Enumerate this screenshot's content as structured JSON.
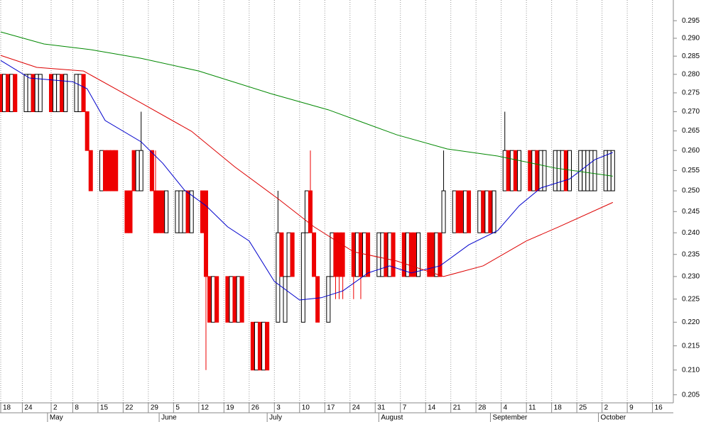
{
  "chart_data": {
    "type": "candlestick",
    "log_scale": true,
    "grid": true,
    "up_color": "#ffffff",
    "down_color": "#ee0000",
    "ylim": [
      0.2034,
      0.301
    ],
    "yticks": [
      0.205,
      {
        "value": 0.21,
        "label": "0.210"
      },
      0.215,
      {
        "value": 0.22,
        "label": "0.220"
      },
      0.225,
      {
        "value": 0.23,
        "label": "0.230"
      },
      0.235,
      {
        "value": 0.24,
        "label": "0.240"
      },
      0.245,
      {
        "value": 0.25,
        "label": "0.250"
      },
      0.255,
      {
        "value": 0.26,
        "label": "0.260"
      },
      0.265,
      {
        "value": 0.27,
        "label": "0.270"
      },
      0.275,
      {
        "value": 0.28,
        "label": "0.280"
      },
      0.285,
      {
        "value": 0.29,
        "label": "0.290"
      },
      0.295
    ],
    "xlim": [
      -0.2,
      186.8
    ],
    "xticks": [
      {
        "value": 0,
        "label": "18"
      },
      {
        "value": 6,
        "label": "24"
      },
      {
        "value": 14,
        "label": "2"
      },
      {
        "value": 20,
        "label": "8"
      },
      {
        "value": 27,
        "label": "15"
      },
      {
        "value": 34,
        "label": "22"
      },
      {
        "value": 41,
        "label": "29"
      },
      {
        "value": 48,
        "label": "5"
      },
      {
        "value": 55,
        "label": "12"
      },
      {
        "value": 62,
        "label": "19"
      },
      {
        "value": 69,
        "label": "26"
      },
      {
        "value": 76,
        "label": "3"
      },
      {
        "value": 83,
        "label": "10"
      },
      {
        "value": 90,
        "label": "17"
      },
      {
        "value": 97,
        "label": "24"
      },
      {
        "value": 104,
        "label": "31"
      },
      {
        "value": 111,
        "label": "7"
      },
      {
        "value": 118,
        "label": "14"
      },
      {
        "value": 125,
        "label": "21"
      },
      {
        "value": 132,
        "label": "28"
      },
      {
        "value": 139,
        "label": "4"
      },
      {
        "value": 146,
        "label": "11"
      },
      {
        "value": 153,
        "label": "18"
      },
      {
        "value": 160,
        "label": "25"
      },
      {
        "value": 167,
        "label": "2"
      },
      {
        "value": 174,
        "label": "9"
      },
      {
        "value": 181,
        "label": "16"
      }
    ],
    "month_labels": [
      {
        "value": 13,
        "label": "May"
      },
      {
        "value": 44,
        "label": "June"
      },
      {
        "value": 74,
        "label": "July"
      },
      {
        "value": 105,
        "label": "August"
      },
      {
        "value": 136,
        "label": "September"
      },
      {
        "value": 166,
        "label": "October"
      }
    ],
    "x": [
      0,
      1,
      2,
      3,
      4,
      7,
      8,
      9,
      10,
      11,
      14,
      15,
      16,
      17,
      18,
      21,
      22,
      23,
      24,
      25,
      28,
      29,
      30,
      31,
      32,
      35,
      36,
      37,
      38,
      39,
      42,
      43,
      44,
      45,
      46,
      49,
      50,
      51,
      52,
      53,
      56,
      57,
      58,
      59,
      60,
      63,
      64,
      65,
      66,
      67,
      70,
      71,
      72,
      73,
      74,
      77,
      78,
      79,
      80,
      81,
      84,
      85,
      86,
      87,
      88,
      91,
      92,
      93,
      94,
      95,
      98,
      99,
      100,
      101,
      102,
      105,
      106,
      107,
      108,
      109,
      112,
      113,
      114,
      115,
      116,
      119,
      120,
      121,
      122,
      123,
      126,
      127,
      128,
      129,
      130,
      133,
      134,
      135,
      136,
      137,
      140,
      141,
      142,
      143,
      144,
      147,
      148,
      149,
      150,
      151,
      154,
      155,
      156,
      157,
      158,
      161,
      162,
      163,
      164,
      165,
      168,
      169,
      170
    ],
    "open": [
      0.28,
      0.27,
      0.28,
      0.27,
      0.28,
      0.27,
      0.27,
      0.28,
      0.27,
      0.27,
      0.28,
      0.27,
      0.27,
      0.28,
      0.27,
      0.27,
      0.27,
      0.28,
      0.27,
      0.26,
      0.25,
      0.26,
      0.26,
      0.26,
      0.26,
      0.25,
      0.25,
      0.26,
      0.25,
      0.25,
      0.26,
      0.25,
      0.25,
      0.25,
      0.24,
      0.24,
      0.24,
      0.24,
      0.25,
      0.24,
      0.25,
      0.25,
      0.23,
      0.22,
      0.23,
      0.23,
      0.22,
      0.23,
      0.22,
      0.23,
      0.22,
      0.21,
      0.22,
      0.21,
      0.22,
      0.22,
      0.24,
      0.22,
      0.23,
      0.24,
      0.22,
      0.24,
      0.25,
      0.24,
      0.23,
      0.22,
      0.23,
      0.24,
      0.24,
      0.24,
      0.24,
      0.23,
      0.24,
      0.23,
      0.24,
      0.23,
      0.23,
      0.24,
      0.23,
      0.24,
      0.24,
      0.23,
      0.24,
      0.24,
      0.23,
      0.24,
      0.24,
      0.23,
      0.24,
      0.24,
      0.24,
      0.25,
      0.25,
      0.24,
      0.25,
      0.24,
      0.25,
      0.24,
      0.25,
      0.24,
      0.25,
      0.26,
      0.25,
      0.26,
      0.25,
      0.26,
      0.25,
      0.26,
      0.25,
      0.25,
      0.25,
      0.25,
      0.25,
      0.26,
      0.25,
      0.25,
      0.25,
      0.25,
      0.25,
      0.25,
      0.25,
      0.25,
      0.25
    ],
    "high": [
      0.28,
      0.28,
      0.28,
      0.28,
      0.28,
      0.28,
      0.28,
      0.28,
      0.28,
      0.28,
      0.28,
      0.28,
      0.28,
      0.28,
      0.28,
      0.28,
      0.28,
      0.28,
      0.27,
      0.26,
      0.26,
      0.26,
      0.26,
      0.26,
      0.26,
      0.25,
      0.25,
      0.26,
      0.26,
      0.27,
      0.26,
      0.26,
      0.25,
      0.25,
      0.25,
      0.25,
      0.25,
      0.25,
      0.25,
      0.25,
      0.25,
      0.25,
      0.23,
      0.23,
      0.23,
      0.23,
      0.23,
      0.23,
      0.23,
      0.23,
      0.22,
      0.22,
      0.22,
      0.22,
      0.22,
      0.25,
      0.24,
      0.23,
      0.24,
      0.24,
      0.24,
      0.25,
      0.26,
      0.24,
      0.23,
      0.23,
      0.24,
      0.24,
      0.24,
      0.24,
      0.24,
      0.24,
      0.24,
      0.24,
      0.24,
      0.24,
      0.24,
      0.24,
      0.24,
      0.24,
      0.24,
      0.24,
      0.24,
      0.24,
      0.24,
      0.24,
      0.24,
      0.24,
      0.24,
      0.26,
      0.25,
      0.25,
      0.25,
      0.25,
      0.25,
      0.25,
      0.25,
      0.25,
      0.25,
      0.25,
      0.27,
      0.26,
      0.26,
      0.26,
      0.26,
      0.26,
      0.26,
      0.26,
      0.26,
      0.26,
      0.26,
      0.26,
      0.26,
      0.26,
      0.26,
      0.26,
      0.26,
      0.26,
      0.26,
      0.26,
      0.26,
      0.26,
      0.26
    ],
    "low": [
      0.27,
      0.27,
      0.27,
      0.27,
      0.27,
      0.27,
      0.27,
      0.27,
      0.27,
      0.27,
      0.27,
      0.27,
      0.27,
      0.27,
      0.27,
      0.27,
      0.27,
      0.27,
      0.26,
      0.25,
      0.25,
      0.25,
      0.25,
      0.25,
      0.25,
      0.24,
      0.24,
      0.25,
      0.25,
      0.25,
      0.25,
      0.24,
      0.24,
      0.24,
      0.24,
      0.24,
      0.24,
      0.24,
      0.24,
      0.24,
      0.24,
      0.21,
      0.22,
      0.22,
      0.22,
      0.22,
      0.22,
      0.22,
      0.22,
      0.22,
      0.21,
      0.21,
      0.21,
      0.21,
      0.21,
      0.22,
      0.23,
      0.22,
      0.23,
      0.23,
      0.22,
      0.24,
      0.24,
      0.23,
      0.22,
      0.22,
      0.23,
      0.225,
      0.225,
      0.225,
      0.225,
      0.23,
      0.225,
      0.23,
      0.23,
      0.23,
      0.23,
      0.23,
      0.23,
      0.23,
      0.23,
      0.23,
      0.23,
      0.23,
      0.23,
      0.23,
      0.23,
      0.23,
      0.23,
      0.24,
      0.24,
      0.24,
      0.24,
      0.24,
      0.24,
      0.24,
      0.24,
      0.24,
      0.24,
      0.24,
      0.25,
      0.25,
      0.25,
      0.25,
      0.25,
      0.25,
      0.25,
      0.25,
      0.25,
      0.25,
      0.25,
      0.25,
      0.25,
      0.25,
      0.25,
      0.25,
      0.25,
      0.25,
      0.25,
      0.25,
      0.25,
      0.25,
      0.25
    ],
    "close": [
      0.27,
      0.28,
      0.27,
      0.28,
      0.27,
      0.28,
      0.28,
      0.27,
      0.28,
      0.28,
      0.27,
      0.28,
      0.28,
      0.27,
      0.28,
      0.28,
      0.28,
      0.27,
      0.26,
      0.25,
      0.26,
      0.25,
      0.25,
      0.25,
      0.25,
      0.24,
      0.24,
      0.25,
      0.26,
      0.26,
      0.25,
      0.24,
      0.24,
      0.24,
      0.25,
      0.25,
      0.25,
      0.25,
      0.24,
      0.25,
      0.24,
      0.23,
      0.22,
      0.23,
      0.22,
      0.22,
      0.23,
      0.22,
      0.23,
      0.22,
      0.21,
      0.22,
      0.21,
      0.22,
      0.21,
      0.24,
      0.23,
      0.23,
      0.24,
      0.23,
      0.24,
      0.25,
      0.24,
      0.23,
      0.22,
      0.23,
      0.24,
      0.23,
      0.23,
      0.23,
      0.23,
      0.24,
      0.23,
      0.24,
      0.23,
      0.24,
      0.24,
      0.23,
      0.24,
      0.23,
      0.23,
      0.24,
      0.23,
      0.23,
      0.24,
      0.23,
      0.23,
      0.24,
      0.23,
      0.25,
      0.25,
      0.24,
      0.24,
      0.25,
      0.24,
      0.25,
      0.24,
      0.25,
      0.24,
      0.25,
      0.26,
      0.25,
      0.26,
      0.25,
      0.26,
      0.25,
      0.26,
      0.25,
      0.26,
      0.26,
      0.26,
      0.26,
      0.26,
      0.25,
      0.26,
      0.26,
      0.26,
      0.26,
      0.26,
      0.26,
      0.26,
      0.26,
      0.26
    ],
    "lines": [
      {
        "color": "#0000cc",
        "x": [
          0,
          8,
          20,
          24,
          29,
          39,
          45,
          51,
          57,
          63,
          69,
          76,
          83,
          89,
          95,
          102,
          108,
          114,
          122,
          130,
          138,
          144,
          150,
          158,
          165,
          170
        ],
        "values": [
          0.2838,
          0.279,
          0.278,
          0.2761,
          0.2677,
          0.2622,
          0.2568,
          0.2502,
          0.2464,
          0.2414,
          0.2381,
          0.2289,
          0.2248,
          0.2253,
          0.2268,
          0.2308,
          0.2324,
          0.2308,
          0.2324,
          0.2372,
          0.2405,
          0.2464,
          0.2507,
          0.2529,
          0.2577,
          0.2595
        ]
      },
      {
        "color": "#dd0000",
        "x": [
          0,
          10,
          23,
          39,
          53,
          65,
          77,
          87,
          98,
          110,
          123,
          134,
          146,
          155,
          170
        ],
        "values": [
          0.2852,
          0.2819,
          0.2809,
          0.2723,
          0.2649,
          0.2559,
          0.2481,
          0.2414,
          0.2356,
          0.2335,
          0.23,
          0.2324,
          0.2381,
          0.2414,
          0.2472
        ]
      },
      {
        "color": "#008800",
        "x": [
          0,
          12,
          25,
          39,
          55,
          75,
          91,
          110,
          124,
          138,
          154,
          170
        ],
        "values": [
          0.2918,
          0.2884,
          0.2868,
          0.2844,
          0.2809,
          0.2748,
          0.2705,
          0.264,
          0.2604,
          0.2586,
          0.2556,
          0.2536
        ]
      }
    ]
  }
}
